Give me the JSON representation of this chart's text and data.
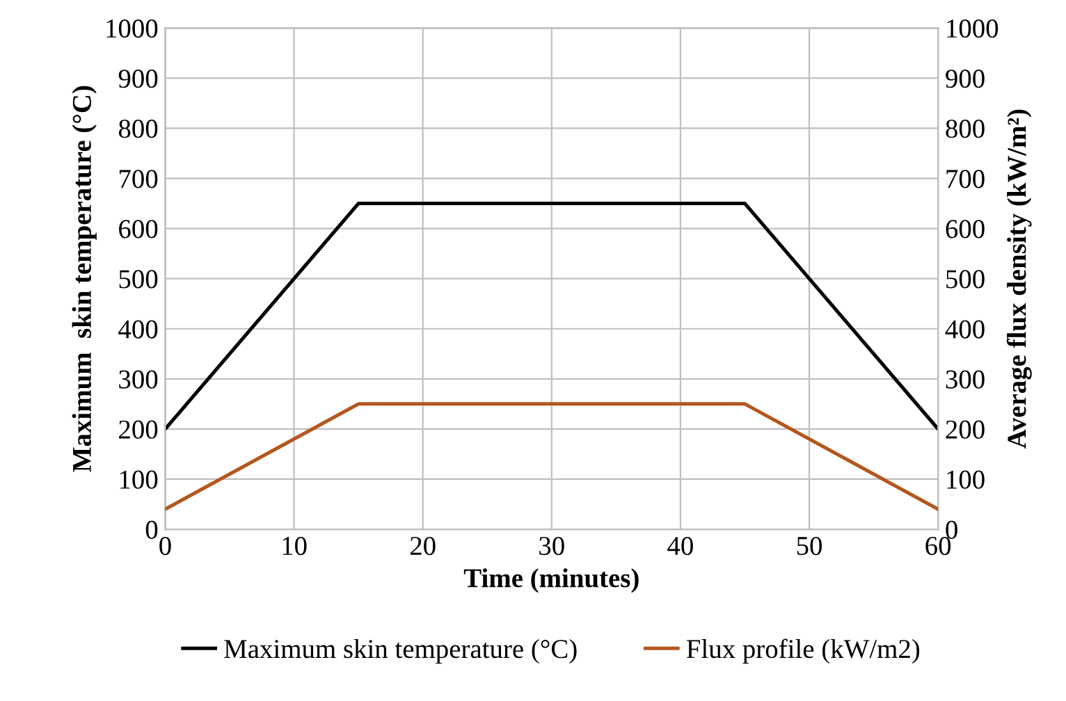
{
  "chart_data": {
    "type": "line",
    "xlabel": "Time (minutes)",
    "ylabel": "Maximum  skin temperature (°C)",
    "y2label": "Average flux density (kW/m²)",
    "x": [
      0,
      15,
      45,
      60
    ],
    "series": [
      {
        "name": "Maximum skin temperature (°C)",
        "color": "#000000",
        "values": [
          200,
          650,
          650,
          200
        ]
      },
      {
        "name": "Flux profile (kW/m2)",
        "color": "#b5561d",
        "values": [
          40,
          250,
          250,
          40
        ],
        "axis": "y2"
      }
    ],
    "xlim": [
      0,
      60
    ],
    "xticks": [
      0,
      10,
      20,
      30,
      40,
      50,
      60
    ],
    "ylim": [
      0,
      1000
    ],
    "yticks": [
      0,
      100,
      200,
      300,
      400,
      500,
      600,
      700,
      800,
      900,
      1000
    ],
    "y2lim": [
      0,
      1000
    ],
    "y2ticks": [
      0,
      100,
      200,
      300,
      400,
      500,
      600,
      700,
      800,
      900,
      1000
    ],
    "grid": true,
    "legend": "bottom",
    "marker": "none",
    "line_style": "solid"
  }
}
